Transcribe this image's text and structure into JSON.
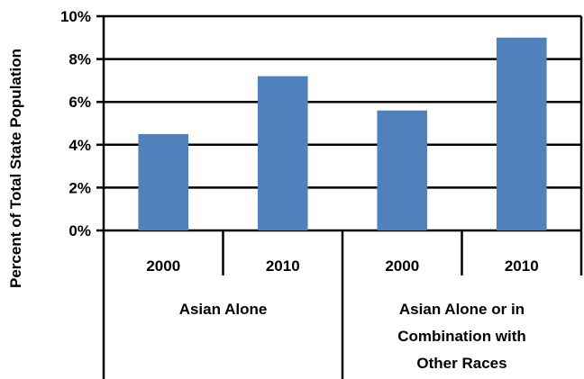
{
  "chart_data": {
    "type": "bar",
    "title": "",
    "xlabel": "",
    "ylabel": "Percent of Total State Population",
    "ylim": [
      0,
      10
    ],
    "yticks": [
      0,
      2,
      4,
      6,
      8,
      10
    ],
    "ytick_labels": [
      "0%",
      "2%",
      "4%",
      "6%",
      "8%",
      "10%"
    ],
    "grid": true,
    "bar_color": "#4f81bd",
    "groups": [
      {
        "label_lines": [
          "Asian Alone"
        ],
        "categories": [
          "2000",
          "2010"
        ],
        "values": [
          4.5,
          7.2
        ]
      },
      {
        "label_lines": [
          "Asian Alone or in",
          "Combination with",
          "Other Races"
        ],
        "categories": [
          "2000",
          "2010"
        ],
        "values": [
          5.6,
          9.0
        ]
      }
    ]
  }
}
